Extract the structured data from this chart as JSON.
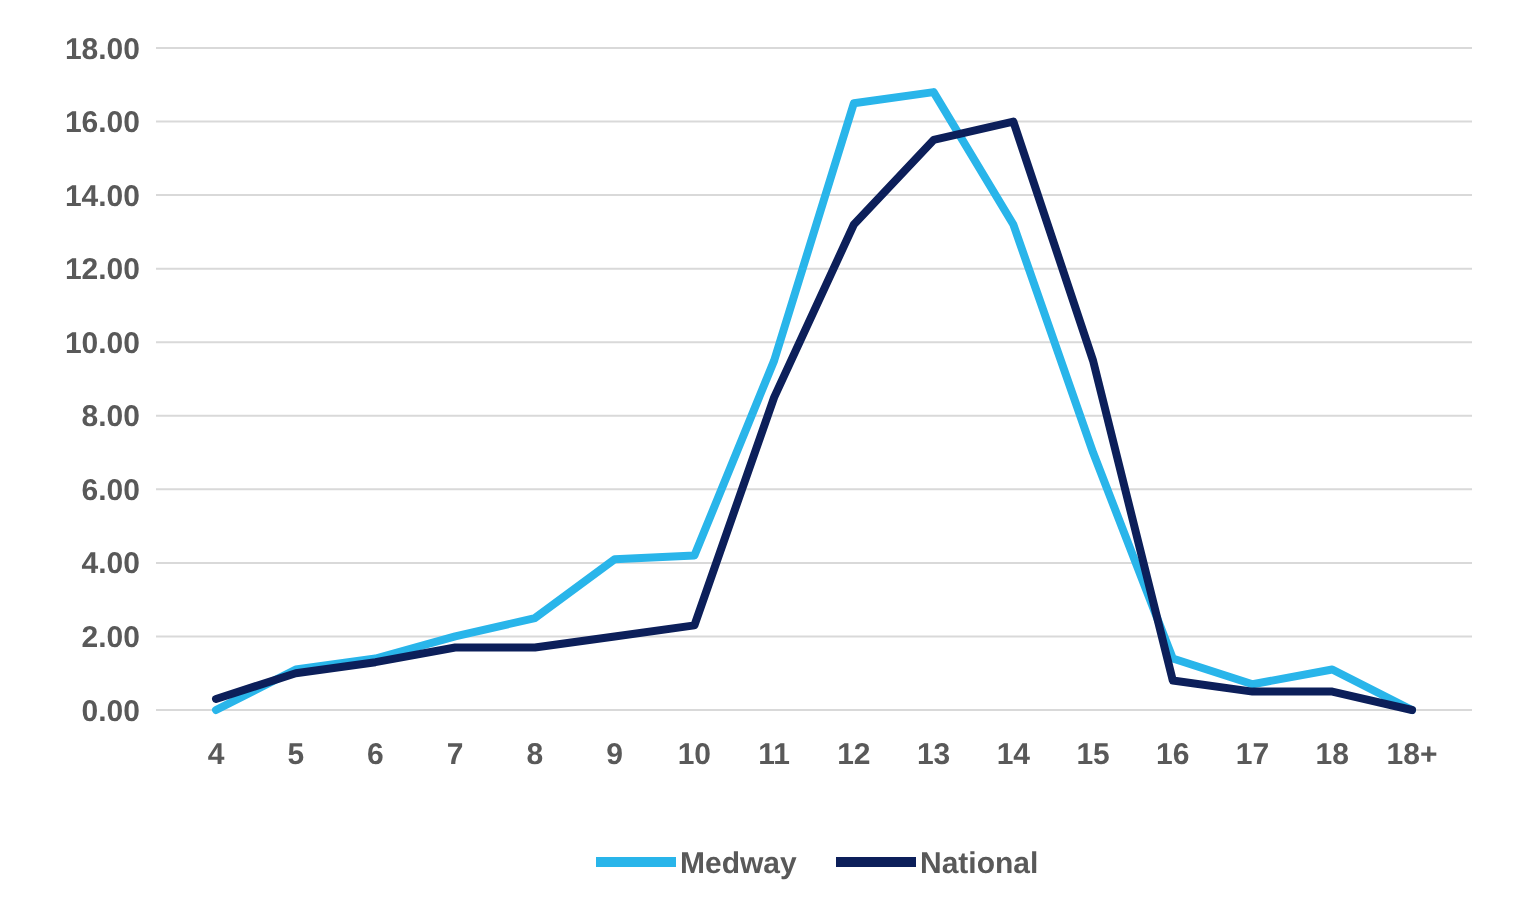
{
  "chart_data": {
    "type": "line",
    "categories": [
      "4",
      "5",
      "6",
      "7",
      "8",
      "9",
      "10",
      "11",
      "12",
      "13",
      "14",
      "15",
      "16",
      "17",
      "18",
      "18+"
    ],
    "series": [
      {
        "name": "Medway",
        "color": "#29b5ea",
        "values": [
          0.0,
          1.1,
          1.4,
          2.0,
          2.5,
          4.1,
          4.2,
          9.5,
          16.5,
          16.8,
          13.2,
          7.0,
          1.4,
          0.7,
          1.1,
          0.0
        ]
      },
      {
        "name": "National",
        "color": "#0c1f5a",
        "values": [
          0.3,
          1.0,
          1.3,
          1.7,
          1.7,
          2.0,
          2.3,
          8.5,
          13.2,
          15.5,
          16.0,
          9.5,
          0.8,
          0.5,
          0.5,
          0.0
        ]
      }
    ],
    "ylim": [
      0,
      18
    ],
    "yticks": [
      {
        "value": 0,
        "label": "0.00"
      },
      {
        "value": 2,
        "label": "2.00"
      },
      {
        "value": 4,
        "label": "4.00"
      },
      {
        "value": 6,
        "label": "6.00"
      },
      {
        "value": 8,
        "label": "8.00"
      },
      {
        "value": 10,
        "label": "10.00"
      },
      {
        "value": 12,
        "label": "12.00"
      },
      {
        "value": 14,
        "label": "14.00"
      },
      {
        "value": 16,
        "label": "16.00"
      },
      {
        "value": 18,
        "label": "18.00"
      }
    ],
    "grid": "y",
    "legend": "bottom",
    "marker": "none",
    "line_style": "solid"
  }
}
